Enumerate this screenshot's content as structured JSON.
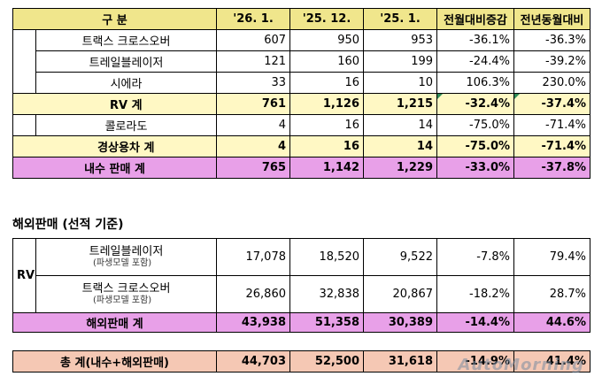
{
  "domestic": {
    "headers": [
      "구 분",
      "'26. 1.",
      "'25. 12.",
      "'25. 1.",
      "전월대비증감",
      "전년동월대비"
    ],
    "rows": [
      {
        "label": "트랙스 크로스오버",
        "v": [
          "607",
          "950",
          "953",
          "-36.1%",
          "-36.3%"
        ]
      },
      {
        "label": "트레일블레이저",
        "v": [
          "121",
          "160",
          "199",
          "-24.4%",
          "-39.2%"
        ]
      },
      {
        "label": "시에라",
        "v": [
          "33",
          "16",
          "10",
          "106.3%",
          "230.0%"
        ]
      }
    ],
    "rv_total": {
      "label": "RV 계",
      "v": [
        "761",
        "1,126",
        "1,215",
        "-32.4%",
        "-37.4%"
      ]
    },
    "colorado": {
      "label": "콜로라도",
      "v": [
        "4",
        "16",
        "14",
        "-75.0%",
        "-71.4%"
      ]
    },
    "commercial_total": {
      "label": "경상용차 계",
      "v": [
        "4",
        "16",
        "14",
        "-75.0%",
        "-71.4%"
      ]
    },
    "domestic_total": {
      "label": "내수 판매 계",
      "v": [
        "765",
        "1,142",
        "1,229",
        "-33.0%",
        "-37.8%"
      ]
    }
  },
  "export": {
    "title": "해외판매 (선적 기준)",
    "group": "RV",
    "rows": [
      {
        "label": "트레일블레이저",
        "sub": "(파생모델 포함)",
        "v": [
          "17,078",
          "18,520",
          "9,522",
          "-7.8%",
          "79.4%"
        ]
      },
      {
        "label": "트랙스 크로스오버",
        "sub": "(파생모델 포함)",
        "v": [
          "26,860",
          "32,838",
          "20,867",
          "-18.2%",
          "28.7%"
        ]
      }
    ],
    "total": {
      "label": "해외판매 계",
      "v": [
        "43,938",
        "51,358",
        "30,389",
        "-14.4%",
        "44.6%"
      ]
    }
  },
  "grand_total": {
    "label": "총 계(내수+해외판매)",
    "v": [
      "44,703",
      "52,500",
      "31,618",
      "-14.9%",
      "41.4%"
    ]
  },
  "watermark": "AutoMorning",
  "colors": {
    "header": "#f0e68c",
    "subtotal": "#fff8c4",
    "domestic_total": "#e8a0e8",
    "grand_total": "#f5c8b4"
  }
}
